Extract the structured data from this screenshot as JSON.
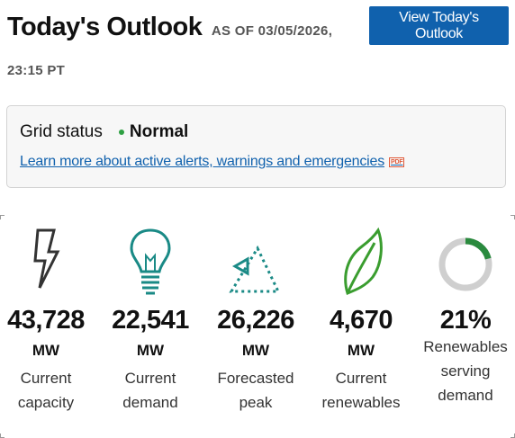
{
  "header": {
    "title": "Today's Outlook",
    "as_of_prefix": "AS OF",
    "as_of_date": "03/05/2026,",
    "as_of_time": "23:15 PT",
    "view_button_label": "View Today's Outlook"
  },
  "grid_status": {
    "label": "Grid status",
    "value": "Normal",
    "status_color": "#2ea043",
    "link_text": "Learn more about active alerts, warnings and emergencies",
    "link_badge": "PDF"
  },
  "stats": [
    {
      "icon": "lightning-bolt-icon",
      "value": "43,728",
      "unit": "MW",
      "label_lines": [
        "Current",
        "capacity"
      ]
    },
    {
      "icon": "light-bulb-icon",
      "value": "22,541",
      "unit": "MW",
      "label_lines": [
        "Current",
        "demand"
      ]
    },
    {
      "icon": "peak-triangle-icon",
      "value": "26,226",
      "unit": "MW",
      "label_lines": [
        "Forecasted",
        "peak"
      ]
    },
    {
      "icon": "leaf-icon",
      "value": "4,670",
      "unit": "MW",
      "label_lines": [
        "Current",
        "renewables"
      ]
    },
    {
      "icon": "donut-gauge-icon",
      "value": "21%",
      "unit": "",
      "label_lines": [
        "Renewables",
        "serving",
        "demand"
      ],
      "gauge_fraction": 0.21
    }
  ],
  "colors": {
    "accent_blue": "#1061ad",
    "icon_dark": "#333333",
    "icon_teal": "#1a8a86",
    "icon_green": "#3a9d2f",
    "gauge_fill": "#2a8a3e",
    "gauge_track": "#cfcfcf"
  }
}
